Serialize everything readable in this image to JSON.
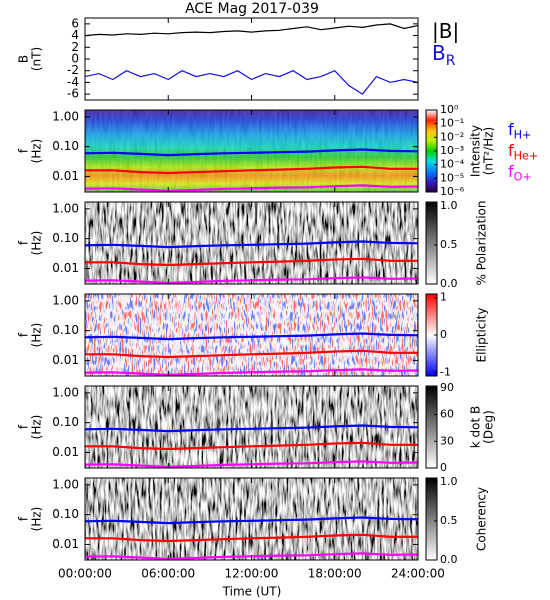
{
  "chart_data": [
    {
      "type": "line",
      "title": "ACE Mag 2017-039",
      "ylabel": [
        "B",
        "(nT)"
      ],
      "xlabel": "Time (UT)",
      "x": [
        0,
        1,
        2,
        3,
        4,
        5,
        6,
        7,
        8,
        9,
        10,
        11,
        12,
        13,
        14,
        15,
        16,
        17,
        18,
        19,
        20,
        21,
        22,
        23,
        24
      ],
      "xlim": [
        0,
        24
      ],
      "xticks": [
        {
          "value": 0,
          "label": "00:00:00"
        },
        {
          "value": 6,
          "label": "06:00:00"
        },
        {
          "value": 12,
          "label": "12:00:00"
        },
        {
          "value": 18,
          "label": "18:00:00"
        },
        {
          "value": 24,
          "label": "24:00:00"
        }
      ],
      "ylim": [
        -7,
        7
      ],
      "yticks": [
        -6,
        -4,
        -2,
        0,
        2,
        4,
        6
      ],
      "series": [
        {
          "name": "|B|",
          "color": "#000000",
          "values": [
            4.0,
            4.2,
            4.1,
            4.3,
            4.2,
            4.4,
            4.3,
            4.5,
            4.6,
            4.5,
            4.7,
            4.8,
            4.6,
            4.8,
            4.9,
            5.2,
            5.5,
            5.0,
            5.3,
            5.6,
            5.4,
            5.8,
            6.0,
            5.2,
            5.7
          ]
        },
        {
          "name": "B",
          "sub": "R",
          "color": "#1010e0",
          "values": [
            -3,
            -2.5,
            -3.5,
            -2,
            -3,
            -2.5,
            -3.5,
            -2,
            -3,
            -2.5,
            -3,
            -2,
            -3.5,
            -2.5,
            -3,
            -2,
            -3.5,
            -3,
            -2,
            -4.5,
            -6,
            -3,
            -4,
            -3.5,
            -4
          ]
        }
      ]
    },
    {
      "type": "spectrogram",
      "texture": "intensity",
      "ylabel": [
        "f",
        "(Hz)"
      ],
      "log_y": true,
      "ylim": [
        0.003,
        1.7
      ],
      "yticks": [
        {
          "value": 1,
          "label": "1.00"
        },
        {
          "value": 0.1,
          "label": "0.10"
        },
        {
          "value": 0.01,
          "label": "0.01"
        }
      ],
      "x": [
        0,
        2,
        4,
        6,
        8,
        10,
        12,
        14,
        16,
        18,
        20,
        22,
        24
      ],
      "series": [
        {
          "name": "f",
          "sub": "H+",
          "color": "#0000ff",
          "values": [
            0.06,
            0.062,
            0.057,
            0.052,
            0.056,
            0.06,
            0.062,
            0.065,
            0.068,
            0.075,
            0.08,
            0.072,
            0.07
          ]
        },
        {
          "name": "f",
          "sub": "He+",
          "color": "#ff0000",
          "values": [
            0.016,
            0.016,
            0.014,
            0.013,
            0.014,
            0.015,
            0.016,
            0.017,
            0.018,
            0.02,
            0.021,
            0.018,
            0.018
          ]
        },
        {
          "name": "f",
          "sub": "O+",
          "color": "#ff00ff",
          "values": [
            0.0039,
            0.004,
            0.0036,
            0.0033,
            0.0035,
            0.0038,
            0.004,
            0.0042,
            0.0043,
            0.0047,
            0.005,
            0.0045,
            0.0046
          ]
        }
      ],
      "colorbar": {
        "label": "Intensity",
        "label2": "(nT²/Hz)",
        "log": true,
        "lim": [
          1e-06,
          1
        ],
        "ticks": [
          {
            "value": 1,
            "label": "10⁰"
          },
          {
            "value": 0.1,
            "label": "10⁻¹"
          },
          {
            "value": 0.01,
            "label": "10⁻²"
          },
          {
            "value": 0.001,
            "label": "10⁻³"
          },
          {
            "value": 0.0001,
            "label": "10⁻⁴"
          },
          {
            "value": 1e-05,
            "label": "10⁻⁵"
          },
          {
            "value": 1e-06,
            "label": "10⁻⁶"
          }
        ],
        "colors": [
          "#2a0044",
          "#3020c0",
          "#0080ff",
          "#00e0e0",
          "#00d000",
          "#c0f000",
          "#ffc000",
          "#ff2000",
          "#ffffff"
        ]
      }
    },
    {
      "type": "spectrogram",
      "texture": "gray",
      "ylabel": [
        "f",
        "(Hz)"
      ],
      "log_y": true,
      "ylim": [
        0.003,
        1.7
      ],
      "yticks": [
        {
          "value": 1,
          "label": "1.00"
        },
        {
          "value": 0.1,
          "label": "0.10"
        },
        {
          "value": 0.01,
          "label": "0.01"
        }
      ],
      "colorbar": {
        "label": "% Polarization",
        "lim": [
          0,
          1.05
        ],
        "ticks": [
          {
            "value": 0,
            "label": "0.0"
          },
          {
            "value": 0.5,
            "label": "0.5"
          },
          {
            "value": 1,
            "label": "1.0"
          }
        ],
        "colors": [
          "#ffffff",
          "#000000"
        ]
      }
    },
    {
      "type": "spectrogram",
      "texture": "diverging",
      "ylabel": [
        "f",
        "(Hz)"
      ],
      "log_y": true,
      "ylim": [
        0.003,
        1.7
      ],
      "yticks": [
        {
          "value": 1,
          "label": "1.00"
        },
        {
          "value": 0.1,
          "label": "0.10"
        },
        {
          "value": 0.01,
          "label": "0.01"
        }
      ],
      "colorbar": {
        "label": "Ellipticity",
        "lim": [
          -1.1,
          1.1
        ],
        "ticks": [
          1,
          0,
          -1
        ],
        "colors": [
          "#0000ff",
          "#ffffff",
          "#ff0000"
        ]
      }
    },
    {
      "type": "spectrogram",
      "texture": "gray",
      "ylabel": [
        "f",
        "(Hz)"
      ],
      "log_y": true,
      "ylim": [
        0.003,
        1.7
      ],
      "yticks": [
        {
          "value": 1,
          "label": "1.00"
        },
        {
          "value": 0.1,
          "label": "0.10"
        },
        {
          "value": 0.01,
          "label": "0.01"
        }
      ],
      "colorbar": {
        "label": "k dot B",
        "label2": "(Deg)",
        "lim": [
          0,
          92
        ],
        "ticks": [
          90,
          60,
          30,
          0
        ],
        "colors": [
          "#ffffff",
          "#000000"
        ]
      }
    },
    {
      "type": "spectrogram",
      "texture": "gray",
      "ylabel": [
        "f",
        "(Hz)"
      ],
      "log_y": true,
      "ylim": [
        0.003,
        1.7
      ],
      "yticks": [
        {
          "value": 1,
          "label": "1.00"
        },
        {
          "value": 0.1,
          "label": "0.10"
        },
        {
          "value": 0.01,
          "label": "0.01"
        }
      ],
      "colorbar": {
        "label": "Coherency",
        "lim": [
          0,
          1.05
        ],
        "ticks": [
          {
            "value": 0,
            "label": "0.0"
          },
          {
            "value": 0.5,
            "label": "0.5"
          },
          {
            "value": 1,
            "label": "1.0"
          }
        ],
        "colors": [
          "#ffffff",
          "#000000"
        ]
      }
    }
  ]
}
